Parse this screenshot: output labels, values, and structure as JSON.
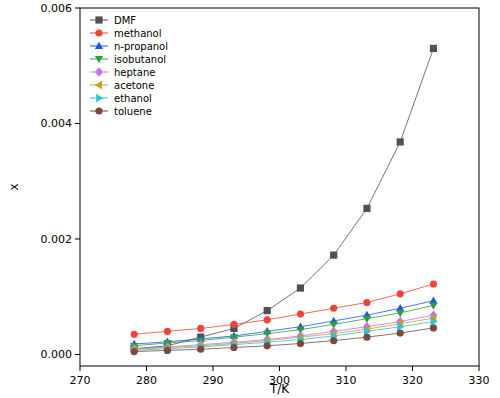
{
  "chart_data": {
    "type": "line",
    "x_label": "T/K",
    "y_label": "x",
    "x": [
      278.15,
      283.15,
      288.15,
      293.15,
      298.15,
      303.15,
      308.15,
      313.15,
      318.15,
      323.15
    ],
    "xlim": [
      270,
      330
    ],
    "xticks": [
      270,
      280,
      290,
      300,
      310,
      320,
      330
    ],
    "ylim": [
      -0.0002,
      0.006
    ],
    "yticks": [
      {
        "value": 0,
        "label": "0.000"
      },
      {
        "value": 0.002,
        "label": "0.002"
      },
      {
        "value": 0.004,
        "label": "0.004"
      },
      {
        "value": 0.006,
        "label": "0.006"
      }
    ],
    "grid": false,
    "legend": "upper-left",
    "series": [
      {
        "name": "DMF",
        "color": "#505050",
        "marker": "square",
        "values": [
          0.0001,
          0.00015,
          0.0003,
          0.00045,
          0.00076,
          0.00115,
          0.00172,
          0.00253,
          0.00368,
          0.0053
        ]
      },
      {
        "name": "methanol",
        "color": "#f0433a",
        "marker": "circle",
        "values": [
          0.00035,
          0.0004,
          0.00045,
          0.00052,
          0.0006,
          0.0007,
          0.0008,
          0.0009,
          0.00105,
          0.00122
        ]
      },
      {
        "name": "n-propanol",
        "color": "#1a56f0",
        "marker": "triangle-up",
        "values": [
          0.00018,
          0.00022,
          0.00027,
          0.00032,
          0.0004,
          0.00048,
          0.00058,
          0.00068,
          0.0008,
          0.00093
        ]
      },
      {
        "name": "isobutanol",
        "color": "#2e9e3a",
        "marker": "triangle-down",
        "values": [
          0.00015,
          0.0002,
          0.00024,
          0.0003,
          0.00036,
          0.00043,
          0.00052,
          0.00062,
          0.00072,
          0.00085
        ]
      },
      {
        "name": "heptane",
        "color": "#c66ef0",
        "marker": "diamond",
        "values": [
          0.0001,
          0.00013,
          0.00017,
          0.00021,
          0.00026,
          0.00032,
          0.0004,
          0.00048,
          0.00057,
          0.00068
        ]
      },
      {
        "name": "acetone",
        "color": "#c9a21e",
        "marker": "triangle-left",
        "values": [
          9e-05,
          0.00012,
          0.00015,
          0.00019,
          0.00024,
          0.0003,
          0.00036,
          0.00044,
          0.00053,
          0.00063
        ]
      },
      {
        "name": "ethanol",
        "color": "#27c3dc",
        "marker": "triangle-right",
        "values": [
          7e-05,
          0.0001,
          0.00013,
          0.00017,
          0.00021,
          0.00026,
          0.00032,
          0.0004,
          0.00048,
          0.00057
        ]
      },
      {
        "name": "toluene",
        "color": "#7a4a3c",
        "marker": "circle",
        "values": [
          5e-05,
          7e-05,
          9e-05,
          0.00012,
          0.00015,
          0.00019,
          0.00024,
          0.0003,
          0.00037,
          0.00046
        ]
      }
    ]
  }
}
